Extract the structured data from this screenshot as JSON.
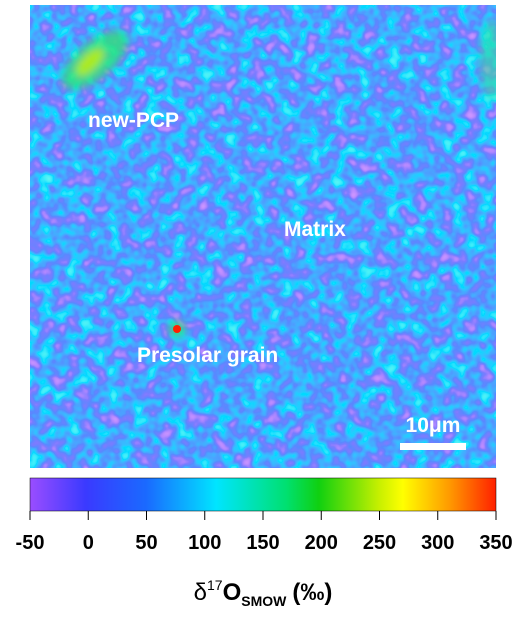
{
  "image": {
    "labels": [
      "new-PCP",
      "Matrix",
      "Presolar grain"
    ],
    "scale_bar": "10μm"
  },
  "colorbar": {
    "min": -50,
    "max": 350,
    "ticks": [
      -50,
      0,
      50,
      100,
      150,
      200,
      250,
      300,
      350
    ],
    "label": {
      "symbol": "δ",
      "superscript": "17",
      "element": "O",
      "subscript": "SMOW",
      "unit": "(‰)"
    }
  }
}
